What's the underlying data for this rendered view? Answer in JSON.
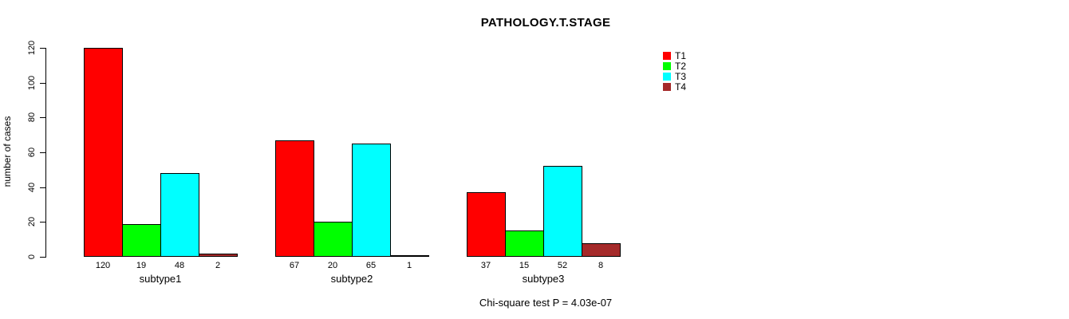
{
  "chart_data": {
    "type": "bar",
    "title": "PATHOLOGY.T.STAGE",
    "ylabel": "number of cases",
    "xlabel": "",
    "categories": [
      "subtype1",
      "subtype2",
      "subtype3"
    ],
    "series": [
      {
        "name": "T1",
        "color": "#FF0000",
        "values": [
          120,
          67,
          37
        ]
      },
      {
        "name": "T2",
        "color": "#00FF00",
        "values": [
          19,
          20,
          15
        ]
      },
      {
        "name": "T3",
        "color": "#00FFFF",
        "values": [
          48,
          65,
          52
        ]
      },
      {
        "name": "T4",
        "color": "#A52A2A",
        "values": [
          2,
          1,
          8
        ]
      }
    ],
    "ylim": [
      0,
      120
    ],
    "yticks": [
      0,
      20,
      40,
      60,
      80,
      100,
      120
    ],
    "bar_value_labels": true,
    "grid": false,
    "legend_position": "top-right",
    "annotation": "Chi-square test P = 4.03e-07"
  }
}
